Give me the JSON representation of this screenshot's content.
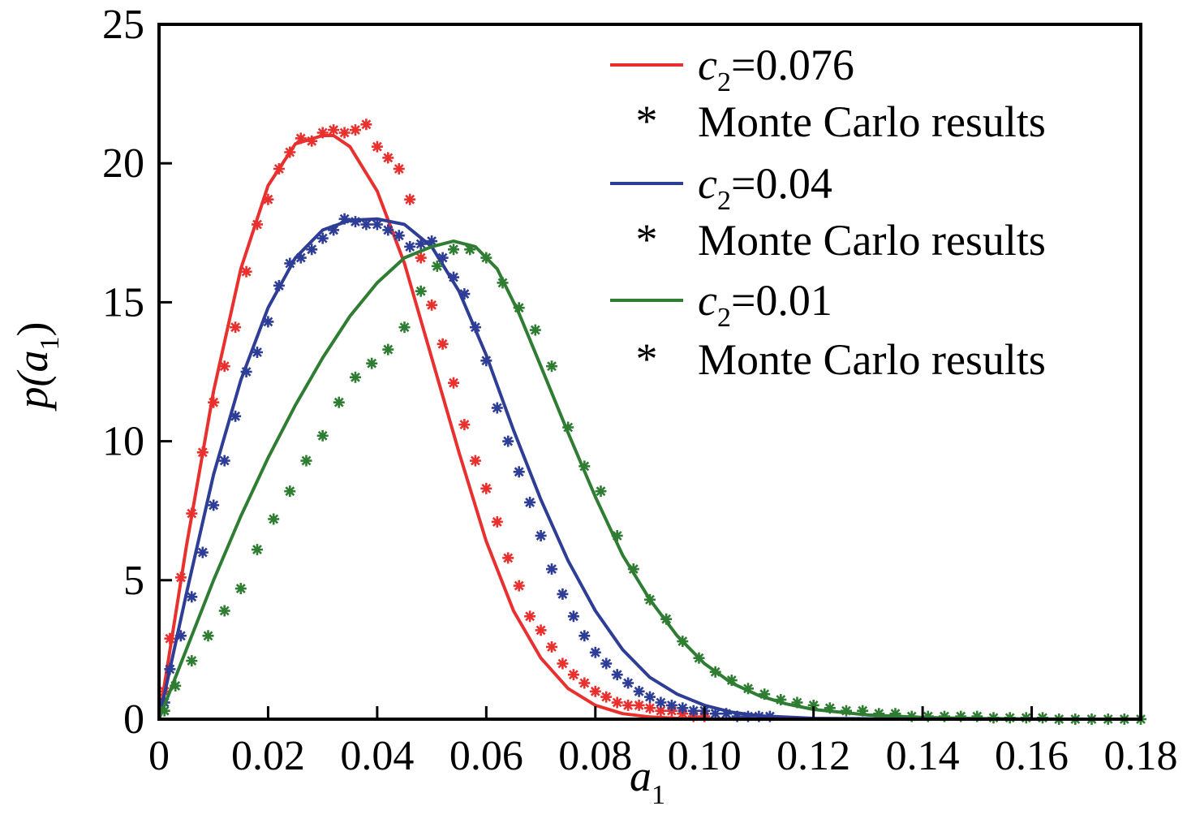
{
  "chart_data": {
    "type": "line",
    "title": "",
    "xlabel": {
      "base": "a",
      "sub": "1"
    },
    "ylabel": {
      "pre": "p(",
      "base": "a",
      "sub": "1",
      "post": ")"
    },
    "xlim": [
      0,
      0.18
    ],
    "ylim": [
      0,
      25
    ],
    "x_ticks": [
      0,
      0.02,
      0.04,
      0.06,
      0.08,
      0.1,
      0.12,
      0.14,
      0.16,
      0.18
    ],
    "x_tick_labels": [
      "0",
      "0.02",
      "0.04",
      "0.06",
      "0.08",
      "0.10",
      "0.12",
      "0.14",
      "0.16",
      "0.18"
    ],
    "y_ticks": [
      0,
      5,
      10,
      15,
      20,
      25
    ],
    "y_tick_labels": [
      "0",
      "5",
      "10",
      "15",
      "20",
      "25"
    ],
    "grid": false,
    "legend_position": "top-right",
    "series": [
      {
        "name": "c2=0.076",
        "legend": {
          "base": "c",
          "sub": "2",
          "rest": "=0.076"
        },
        "kind": "line",
        "color": "#e8312f",
        "x": [
          0,
          0.005,
          0.01,
          0.015,
          0.02,
          0.025,
          0.03,
          0.032,
          0.035,
          0.04,
          0.045,
          0.05,
          0.055,
          0.06,
          0.065,
          0.07,
          0.075,
          0.08,
          0.085,
          0.09,
          0.095,
          0.1,
          0.11,
          0.12,
          0.14,
          0.16,
          0.18
        ],
        "y": [
          0,
          6.2,
          11.8,
          16.2,
          19.2,
          20.7,
          21.0,
          21.0,
          20.6,
          19.0,
          16.4,
          13.0,
          9.6,
          6.4,
          3.9,
          2.2,
          1.1,
          0.5,
          0.2,
          0.08,
          0.03,
          0.01,
          0,
          0,
          0,
          0,
          0
        ]
      },
      {
        "name": "Monte Carlo results",
        "legend": {
          "text": "Monte Carlo results"
        },
        "kind": "markers",
        "color": "#e8312f",
        "x": [
          0.001,
          0.002,
          0.004,
          0.006,
          0.008,
          0.01,
          0.012,
          0.014,
          0.016,
          0.018,
          0.02,
          0.022,
          0.024,
          0.026,
          0.028,
          0.03,
          0.032,
          0.034,
          0.036,
          0.038,
          0.04,
          0.042,
          0.044,
          0.046,
          0.048,
          0.05,
          0.052,
          0.054,
          0.056,
          0.058,
          0.06,
          0.062,
          0.064,
          0.066,
          0.068,
          0.07,
          0.072,
          0.074,
          0.076,
          0.078,
          0.08,
          0.082,
          0.084,
          0.086,
          0.088,
          0.09,
          0.092,
          0.094,
          0.096,
          0.098,
          0.1
        ],
        "y": [
          1.0,
          2.9,
          5.1,
          7.4,
          9.6,
          11.4,
          12.7,
          14.1,
          16.1,
          17.8,
          18.7,
          19.8,
          20.4,
          20.9,
          20.8,
          21.1,
          21.2,
          21.1,
          21.2,
          21.4,
          20.6,
          20.2,
          19.8,
          18.7,
          16.6,
          14.9,
          13.5,
          12.1,
          10.6,
          9.3,
          8.3,
          7.1,
          5.8,
          4.8,
          3.7,
          3.2,
          2.6,
          2.0,
          1.6,
          1.3,
          1.0,
          0.8,
          0.6,
          0.5,
          0.5,
          0.4,
          0.3,
          0.3,
          0.2,
          0.1,
          0.1
        ]
      },
      {
        "name": "c2=0.04",
        "legend": {
          "base": "c",
          "sub": "2",
          "rest": "=0.04"
        },
        "kind": "line",
        "color": "#2e3d95",
        "x": [
          0,
          0.005,
          0.01,
          0.015,
          0.02,
          0.025,
          0.03,
          0.035,
          0.04,
          0.045,
          0.05,
          0.055,
          0.06,
          0.065,
          0.07,
          0.075,
          0.08,
          0.085,
          0.09,
          0.095,
          0.1,
          0.105,
          0.11,
          0.12,
          0.14,
          0.16,
          0.18
        ],
        "y": [
          0,
          4.5,
          8.8,
          12.2,
          14.8,
          16.6,
          17.6,
          17.95,
          18.0,
          17.8,
          17.0,
          15.4,
          13.1,
          10.4,
          7.9,
          5.7,
          3.9,
          2.5,
          1.5,
          0.9,
          0.5,
          0.25,
          0.12,
          0.03,
          0,
          0,
          0
        ]
      },
      {
        "name": "Monte Carlo results",
        "legend": {
          "text": "Monte Carlo results"
        },
        "kind": "markers",
        "color": "#2e3d95",
        "x": [
          0.001,
          0.002,
          0.004,
          0.006,
          0.008,
          0.01,
          0.012,
          0.014,
          0.016,
          0.018,
          0.02,
          0.022,
          0.024,
          0.026,
          0.028,
          0.03,
          0.032,
          0.034,
          0.036,
          0.038,
          0.04,
          0.042,
          0.044,
          0.046,
          0.048,
          0.05,
          0.052,
          0.054,
          0.056,
          0.058,
          0.06,
          0.062,
          0.064,
          0.066,
          0.068,
          0.07,
          0.072,
          0.074,
          0.076,
          0.078,
          0.08,
          0.082,
          0.084,
          0.086,
          0.088,
          0.09,
          0.092,
          0.094,
          0.096,
          0.098,
          0.1,
          0.102,
          0.104,
          0.106,
          0.108,
          0.11,
          0.112
        ],
        "y": [
          0.6,
          1.8,
          3.0,
          4.4,
          6.0,
          7.7,
          9.3,
          10.9,
          12.5,
          13.2,
          14.3,
          15.6,
          16.4,
          16.6,
          16.9,
          17.3,
          17.6,
          18.0,
          17.9,
          17.8,
          17.8,
          17.6,
          17.4,
          17.0,
          17.1,
          17.2,
          16.6,
          15.9,
          15.3,
          14.1,
          12.9,
          11.2,
          10.0,
          8.9,
          7.8,
          6.6,
          5.4,
          4.5,
          3.7,
          3.0,
          2.4,
          2.0,
          1.6,
          1.3,
          1.0,
          0.8,
          0.6,
          0.5,
          0.4,
          0.3,
          0.3,
          0.2,
          0.2,
          0.1,
          0.1,
          0.1,
          0.1
        ]
      },
      {
        "name": "c2=0.01",
        "legend": {
          "base": "c",
          "sub": "2",
          "rest": "=0.01"
        },
        "kind": "line",
        "color": "#2f7d32",
        "x": [
          0,
          0.005,
          0.01,
          0.015,
          0.02,
          0.025,
          0.03,
          0.035,
          0.04,
          0.045,
          0.05,
          0.054,
          0.058,
          0.062,
          0.066,
          0.07,
          0.075,
          0.08,
          0.085,
          0.09,
          0.095,
          0.1,
          0.105,
          0.11,
          0.115,
          0.12,
          0.13,
          0.14,
          0.15,
          0.16,
          0.17,
          0.18
        ],
        "y": [
          0,
          2.5,
          5.0,
          7.3,
          9.4,
          11.3,
          13.0,
          14.5,
          15.7,
          16.6,
          17.0,
          17.2,
          17.0,
          16.2,
          14.6,
          12.7,
          10.3,
          8.0,
          5.9,
          4.3,
          3.0,
          2.0,
          1.3,
          0.85,
          0.55,
          0.35,
          0.15,
          0.06,
          0.02,
          0.01,
          0,
          0
        ]
      },
      {
        "name": "Monte Carlo results",
        "legend": {
          "text": "Monte Carlo results"
        },
        "kind": "markers",
        "color": "#2f7d32",
        "x": [
          0.001,
          0.003,
          0.006,
          0.009,
          0.012,
          0.015,
          0.018,
          0.021,
          0.024,
          0.027,
          0.03,
          0.033,
          0.036,
          0.039,
          0.042,
          0.045,
          0.048,
          0.051,
          0.054,
          0.057,
          0.06,
          0.063,
          0.066,
          0.069,
          0.072,
          0.075,
          0.078,
          0.081,
          0.084,
          0.087,
          0.09,
          0.093,
          0.096,
          0.099,
          0.102,
          0.105,
          0.108,
          0.111,
          0.114,
          0.117,
          0.12,
          0.123,
          0.126,
          0.129,
          0.132,
          0.135,
          0.138,
          0.141,
          0.144,
          0.147,
          0.15,
          0.153,
          0.156,
          0.159,
          0.162,
          0.165,
          0.168,
          0.171,
          0.174,
          0.177,
          0.18
        ],
        "y": [
          0.3,
          1.2,
          2.1,
          3.0,
          3.9,
          4.7,
          6.1,
          7.2,
          8.2,
          9.3,
          10.2,
          11.4,
          12.3,
          12.8,
          13.3,
          14.1,
          15.4,
          16.3,
          16.9,
          16.9,
          16.6,
          15.7,
          14.8,
          14.0,
          12.7,
          10.5,
          9.1,
          8.2,
          6.6,
          5.4,
          4.3,
          3.6,
          2.8,
          2.2,
          1.7,
          1.4,
          1.1,
          0.9,
          0.7,
          0.6,
          0.5,
          0.4,
          0.3,
          0.3,
          0.2,
          0.2,
          0.1,
          0.1,
          0.1,
          0.1,
          0.1,
          0.05,
          0.05,
          0.05,
          0.05,
          0,
          0,
          0,
          0,
          0,
          0
        ]
      }
    ]
  }
}
